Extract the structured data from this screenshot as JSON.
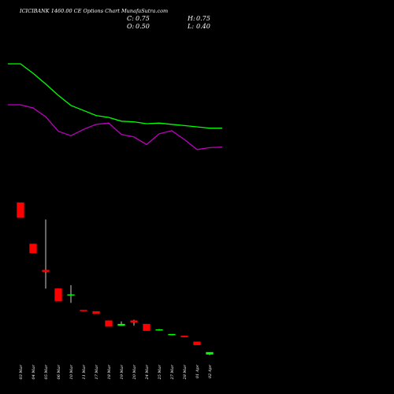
{
  "chart_data": {
    "type": "candlestick",
    "title": "ICICIBANK 1460.00 CE Options Chart MunafaSutra.com",
    "ohlc": {
      "C": "0.75",
      "H": "0.75",
      "O": "0.50",
      "L": "0.40"
    },
    "categories": [
      "03 Mar",
      "04 Mar",
      "05 Mar",
      "06 Mar",
      "10 Mar",
      "11 Mar",
      "17 Mar",
      "18 Mar",
      "19 Mar",
      "20 Mar",
      "24 Mar",
      "25 Mar",
      "27 Mar",
      "28 Mar",
      "01 Apr",
      "02 Apr"
    ],
    "candles": [
      {
        "o": 18.5,
        "h": 18.5,
        "l": 16.7,
        "c": 16.7
      },
      {
        "o": 13.6,
        "h": 13.6,
        "l": 12.5,
        "c": 12.5
      },
      {
        "o": 10.5,
        "h": 16.5,
        "l": 8.3,
        "c": 10.3
      },
      {
        "o": 8.3,
        "h": 8.3,
        "l": 6.8,
        "c": 6.8
      },
      {
        "o": 7.6,
        "h": 8.7,
        "l": 6.6,
        "c": 7.6
      },
      {
        "o": 5.75,
        "h": 5.75,
        "l": 5.65,
        "c": 5.7
      },
      {
        "o": 5.6,
        "h": 5.6,
        "l": 5.3,
        "c": 5.3
      },
      {
        "o": 4.5,
        "h": 4.5,
        "l": 3.8,
        "c": 3.8
      },
      {
        "o": 3.9,
        "h": 4.4,
        "l": 3.9,
        "c": 4.1
      },
      {
        "o": 4.5,
        "h": 4.6,
        "l": 3.9,
        "c": 4.3
      },
      {
        "o": 4.1,
        "h": 4.1,
        "l": 3.3,
        "c": 3.3
      },
      {
        "o": 3.45,
        "h": 3.5,
        "l": 3.4,
        "c": 3.45
      },
      {
        "o": 2.9,
        "h": 2.9,
        "l": 2.85,
        "c": 2.9
      },
      {
        "o": 2.7,
        "h": 2.7,
        "l": 2.55,
        "c": 2.55
      },
      {
        "o": 2.0,
        "h": 2.0,
        "l": 1.6,
        "c": 1.6
      },
      {
        "o": 0.5,
        "h": 0.75,
        "l": 0.4,
        "c": 0.75
      }
    ],
    "series": [
      {
        "color": "#00ff00",
        "points": [
          [
            -1,
            80
          ],
          [
            0,
            80
          ],
          [
            1,
            65
          ],
          [
            2,
            48
          ],
          [
            3,
            30
          ],
          [
            4,
            14
          ],
          [
            5,
            6
          ],
          [
            6,
            -2
          ],
          [
            7,
            -5
          ],
          [
            8,
            -11
          ],
          [
            9,
            -12
          ],
          [
            10,
            -15
          ],
          [
            11,
            -14
          ],
          [
            12,
            -16
          ],
          [
            13,
            -18
          ],
          [
            14,
            -20
          ],
          [
            15,
            -22
          ],
          [
            16,
            -22
          ]
        ]
      },
      {
        "color": "#c000c0",
        "points": [
          [
            -1,
            15
          ],
          [
            0,
            15
          ],
          [
            1,
            10
          ],
          [
            2,
            -4
          ],
          [
            3,
            -27
          ],
          [
            4,
            -34
          ],
          [
            5,
            -24
          ],
          [
            6,
            -16
          ],
          [
            7,
            -14
          ],
          [
            8,
            -32
          ],
          [
            9,
            -36
          ],
          [
            10,
            -48
          ],
          [
            11,
            -31
          ],
          [
            12,
            -26
          ],
          [
            13,
            -40
          ],
          [
            14,
            -56
          ],
          [
            15,
            -53
          ],
          [
            16,
            -52
          ]
        ]
      }
    ],
    "colors": {
      "up": "#00ff00",
      "down": "#ff0000",
      "background": "#000000",
      "axis_text": "#ffffff"
    },
    "grid": false
  }
}
